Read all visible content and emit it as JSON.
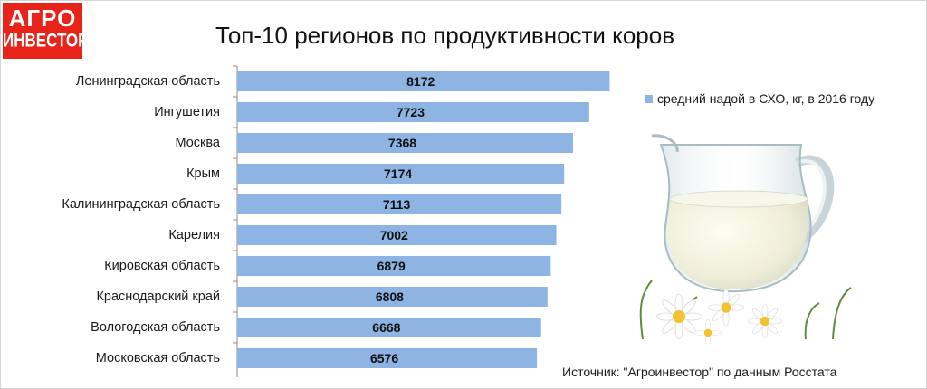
{
  "logo": {
    "line1": "АГРО",
    "line2": "ИНВЕСТОР"
  },
  "colors": {
    "bar": "#8eb4e3",
    "logo_bg": "#e8231a"
  },
  "source_note": "Источник: \"Агроинвестор\" по данным Росстата",
  "chart_data": {
    "type": "bar",
    "orientation": "horizontal",
    "title": "Топ-10 регионов по продуктивности коров",
    "categories": [
      "Ленинградская область",
      "Ингушетия",
      "Москва",
      "Крым",
      "Калининградская область",
      "Карелия",
      "Кировская область",
      "Краснодарский край",
      "Вологодская область",
      "Московская область"
    ],
    "series": [
      {
        "name": "средний надой в СХО, кг, в 2016 году",
        "values": [
          8172,
          7723,
          7368,
          7174,
          7113,
          7002,
          6879,
          6808,
          6668,
          6576
        ]
      }
    ],
    "data_labels": true,
    "legend": "right",
    "grid": false
  },
  "decoration": {
    "illustration": "milk-jug-with-chamomile-icon"
  }
}
